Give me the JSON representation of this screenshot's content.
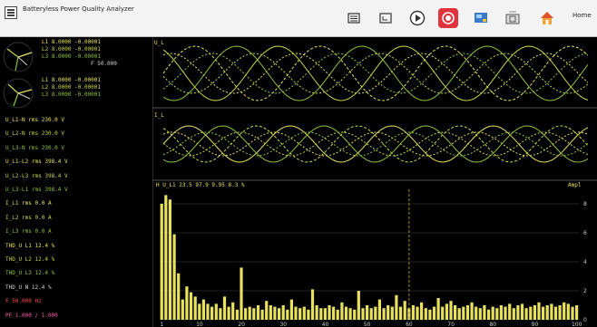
{
  "window": {
    "title": "Batteryless Power Quality Analyzer"
  },
  "toolbar": {
    "home_label": "Home",
    "buttons": [
      {
        "name": "list-icon",
        "label": ""
      },
      {
        "name": "fullscreen-icon",
        "label": ""
      },
      {
        "name": "play-icon",
        "label": ""
      },
      {
        "name": "record-icon",
        "label": ""
      },
      {
        "name": "screen-icon",
        "label": ""
      },
      {
        "name": "snapshot-icon",
        "label": ""
      },
      {
        "name": "home-icon",
        "label": ""
      }
    ]
  },
  "phasor": {
    "upper_rows": [
      "L1 8.0000  -0.00001",
      "L2 8.0000  -0.00001",
      "L3 8.0000  -0.00001"
    ],
    "upper_bottom": "F 50.000",
    "lower_rows": [
      "L1 8.0000  -0.00001",
      "L2 8.0000  -0.00001",
      "L3 8.0000  -0.00001"
    ]
  },
  "channels": [
    {
      "label": "U_L1-N rms  230.0 V",
      "color": "#e8e15c"
    },
    {
      "label": "U_L2-N rms  230.0 V",
      "color": "#c9d64a"
    },
    {
      "label": "U_L3-N rms  230.0 V",
      "color": "#8fc23d"
    },
    {
      "label": "U_L1-L2 rms 398.4 V",
      "color": "#e8e15c"
    },
    {
      "label": "U_L2-L3 rms 398.4 V",
      "color": "#c9d64a"
    },
    {
      "label": "U_L3-L1 rms 398.4 V",
      "color": "#8fc23d"
    },
    {
      "label": "I_L1 rms     0.0 A",
      "color": "#e8e15c"
    },
    {
      "label": "I_L2 rms     0.0 A",
      "color": "#c9d64a"
    },
    {
      "label": "I_L3 rms     0.0 A",
      "color": "#8fc23d"
    },
    {
      "label": "THD_U L1  12.4 %",
      "color": "#e8e15c"
    },
    {
      "label": "THD_U L2  12.4 %",
      "color": "#c9d64a"
    },
    {
      "label": "THD_U L3  12.4 %",
      "color": "#8fc23d"
    },
    {
      "label": "THD_U N   12.4 %",
      "color": "#cfcfcf"
    },
    {
      "label": "F 50.000 Hz",
      "color": "#ff4a4a"
    },
    {
      "label": "PF 1.000 / 1.000",
      "color": "#ff5fa8"
    }
  ],
  "graph": {
    "wave_label_top": "U_L",
    "wave_label_mid": "I_L",
    "harmonics_header": "H  U_L1  23.5  97.9  9.95  8.3 %",
    "harmonics_right": "Ampl",
    "x_ticks": [
      "1",
      "10",
      "20",
      "30",
      "40",
      "50",
      "60",
      "70",
      "80",
      "90",
      "100"
    ],
    "y_ticks": [
      "8",
      "6",
      "4",
      "2",
      "0"
    ]
  },
  "colors": {
    "wave1": "#e8e15c",
    "wave2": "#c9d64a",
    "wave3": "#8fc23d",
    "bars": "#e8e15c",
    "grid": "#2b2b2b",
    "marker": "#9a8f33"
  },
  "chart_data": {
    "type": "bar",
    "values": [
      8,
      8.6,
      8.3,
      5.9,
      3.2,
      1.4,
      2.3,
      1.9,
      1.6,
      1.1,
      1.4,
      1.1,
      0.9,
      1.1,
      0.8,
      1.6,
      0.9,
      1.2,
      0.7,
      3.6,
      0.8,
      0.9,
      0.8,
      1.0,
      0.7,
      1.3,
      1.0,
      0.9,
      0.8,
      1.0,
      0.7,
      1.4,
      0.9,
      0.8,
      0.9,
      0.7,
      2.1,
      1.0,
      0.8,
      0.8,
      1.0,
      0.9,
      0.7,
      1.2,
      0.9,
      0.8,
      0.7,
      2.0,
      0.8,
      1.0,
      0.8,
      0.9,
      1.4,
      0.8,
      1.0,
      0.9,
      1.7,
      0.9,
      1.3,
      0.8,
      1.0,
      0.9,
      1.2,
      0.8,
      0.7,
      0.9,
      1.5,
      0.9,
      1.1,
      1.3,
      1.0,
      0.8,
      0.9,
      1.0,
      1.2,
      0.9,
      0.8,
      1.0,
      0.7,
      0.9,
      0.8,
      1.0,
      0.9,
      1.1,
      0.8,
      1.0,
      1.1,
      0.8,
      0.9,
      1.0,
      1.2,
      0.9,
      1.0,
      1.1,
      0.9,
      1.0,
      1.2,
      1.1,
      0.9,
      1.0
    ],
    "ylim": [
      0,
      9
    ],
    "marker_harmonic": 60
  }
}
